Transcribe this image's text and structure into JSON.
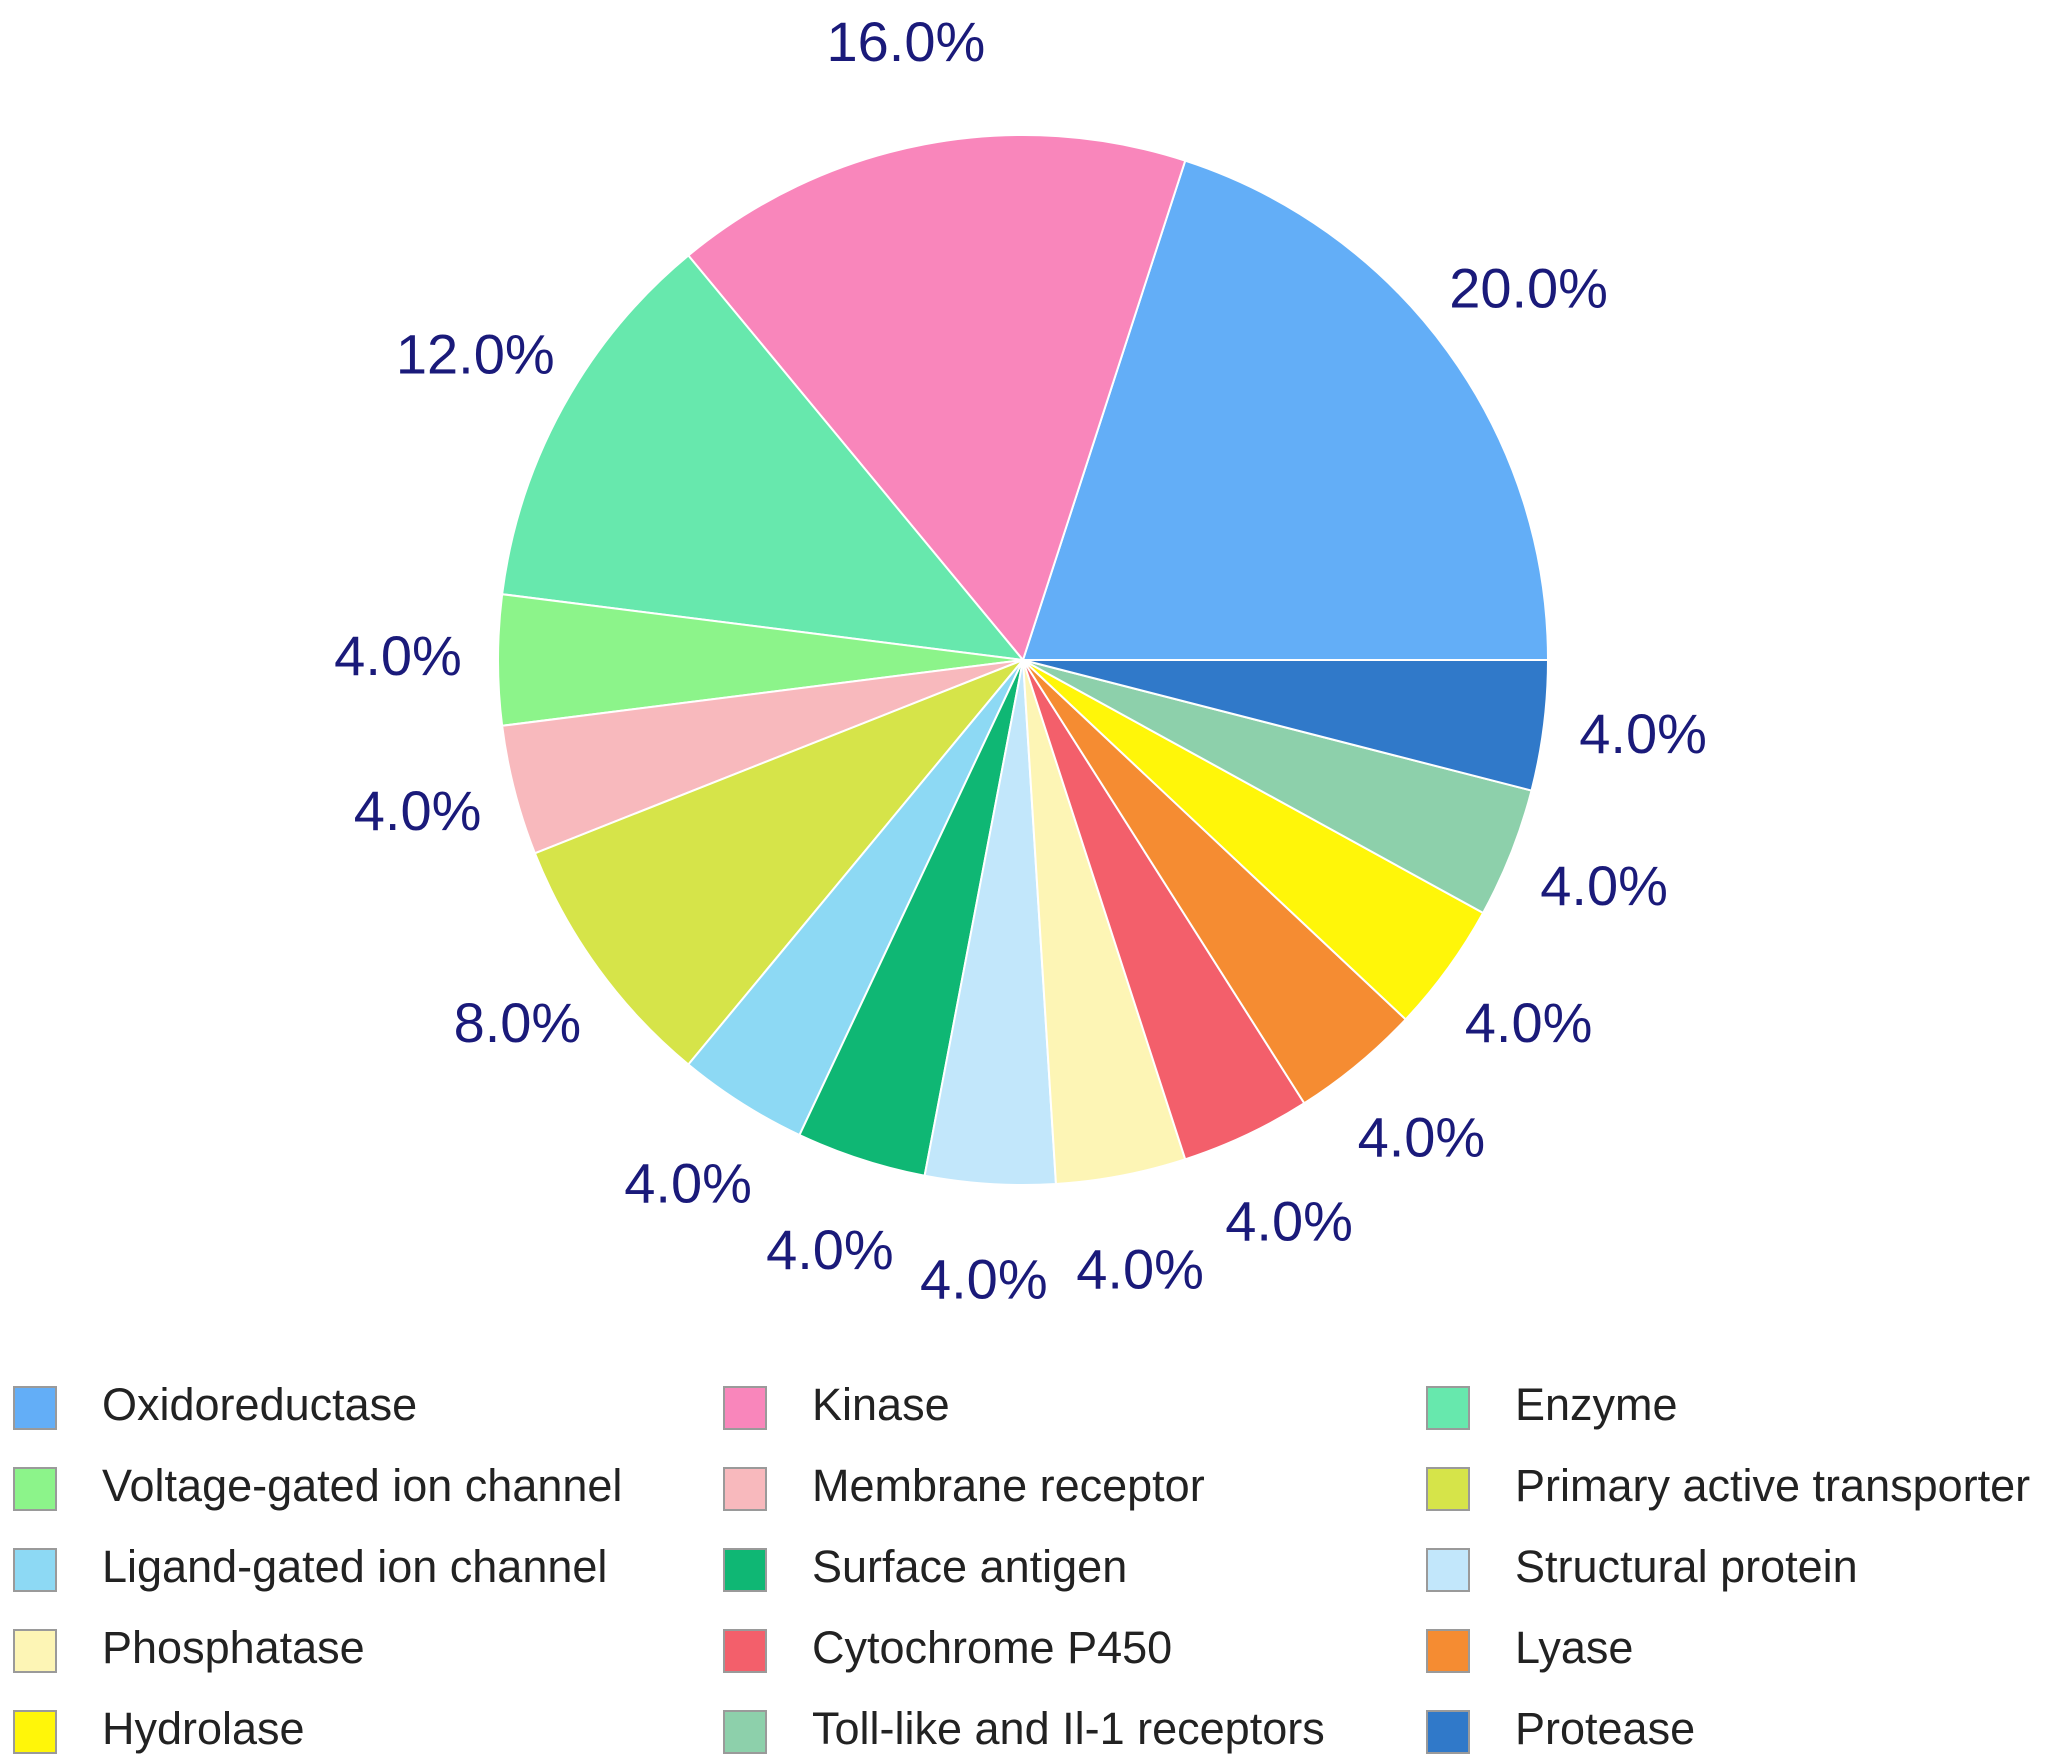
{
  "chart_data": {
    "type": "pie",
    "start_angle_deg": 0,
    "direction": "counterclockwise",
    "label_format": "percent_one_decimal",
    "label_color": "#1a1a7a",
    "slices": [
      {
        "name": "Oxidoreductase",
        "value": 20.0,
        "label": "20.0%",
        "color": "#63aef7"
      },
      {
        "name": "Kinase",
        "value": 16.0,
        "label": "16.0%",
        "color": "#f986bb"
      },
      {
        "name": "Enzyme",
        "value": 12.0,
        "label": "12.0%",
        "color": "#67e8ad"
      },
      {
        "name": "Voltage-gated ion channel",
        "value": 4.0,
        "label": "4.0%",
        "color": "#8cf48a"
      },
      {
        "name": "Membrane receptor",
        "value": 4.0,
        "label": "4.0%",
        "color": "#f8b9bd"
      },
      {
        "name": "Primary active transporter",
        "value": 8.0,
        "label": "8.0%",
        "color": "#d6e449"
      },
      {
        "name": "Ligand-gated ion channel",
        "value": 4.0,
        "label": "4.0%",
        "color": "#8dd9f4"
      },
      {
        "name": "Surface antigen",
        "value": 4.0,
        "label": "4.0%",
        "color": "#0fb774"
      },
      {
        "name": "Structural protein",
        "value": 4.0,
        "label": "4.0%",
        "color": "#c2e7fb"
      },
      {
        "name": "Phosphatase",
        "value": 4.0,
        "label": "4.0%",
        "color": "#fdf5b5"
      },
      {
        "name": "Cytochrome P450",
        "value": 4.0,
        "label": "4.0%",
        "color": "#f35f6b"
      },
      {
        "name": "Lyase",
        "value": 4.0,
        "label": "4.0%",
        "color": "#f58c32"
      },
      {
        "name": "Hydrolase",
        "value": 4.0,
        "label": "4.0%",
        "color": "#fff609"
      },
      {
        "name": "Toll-like and Il-1 receptors",
        "value": 4.0,
        "label": "4.0%",
        "color": "#8dd0ab"
      },
      {
        "name": "Protease",
        "value": 4.0,
        "label": "4.0%",
        "color": "#3079c9"
      }
    ],
    "legend": {
      "position": "bottom",
      "columns": 3,
      "entries": [
        "Oxidoreductase",
        "Kinase",
        "Enzyme",
        "Voltage-gated ion channel",
        "Membrane receptor",
        "Primary active transporter",
        "Ligand-gated ion channel",
        "Surface antigen",
        "Structural protein",
        "Phosphatase",
        "Cytochrome P450",
        "Lyase",
        "Hydrolase",
        "Toll-like and Il-1 receptors",
        "Protease"
      ]
    }
  }
}
